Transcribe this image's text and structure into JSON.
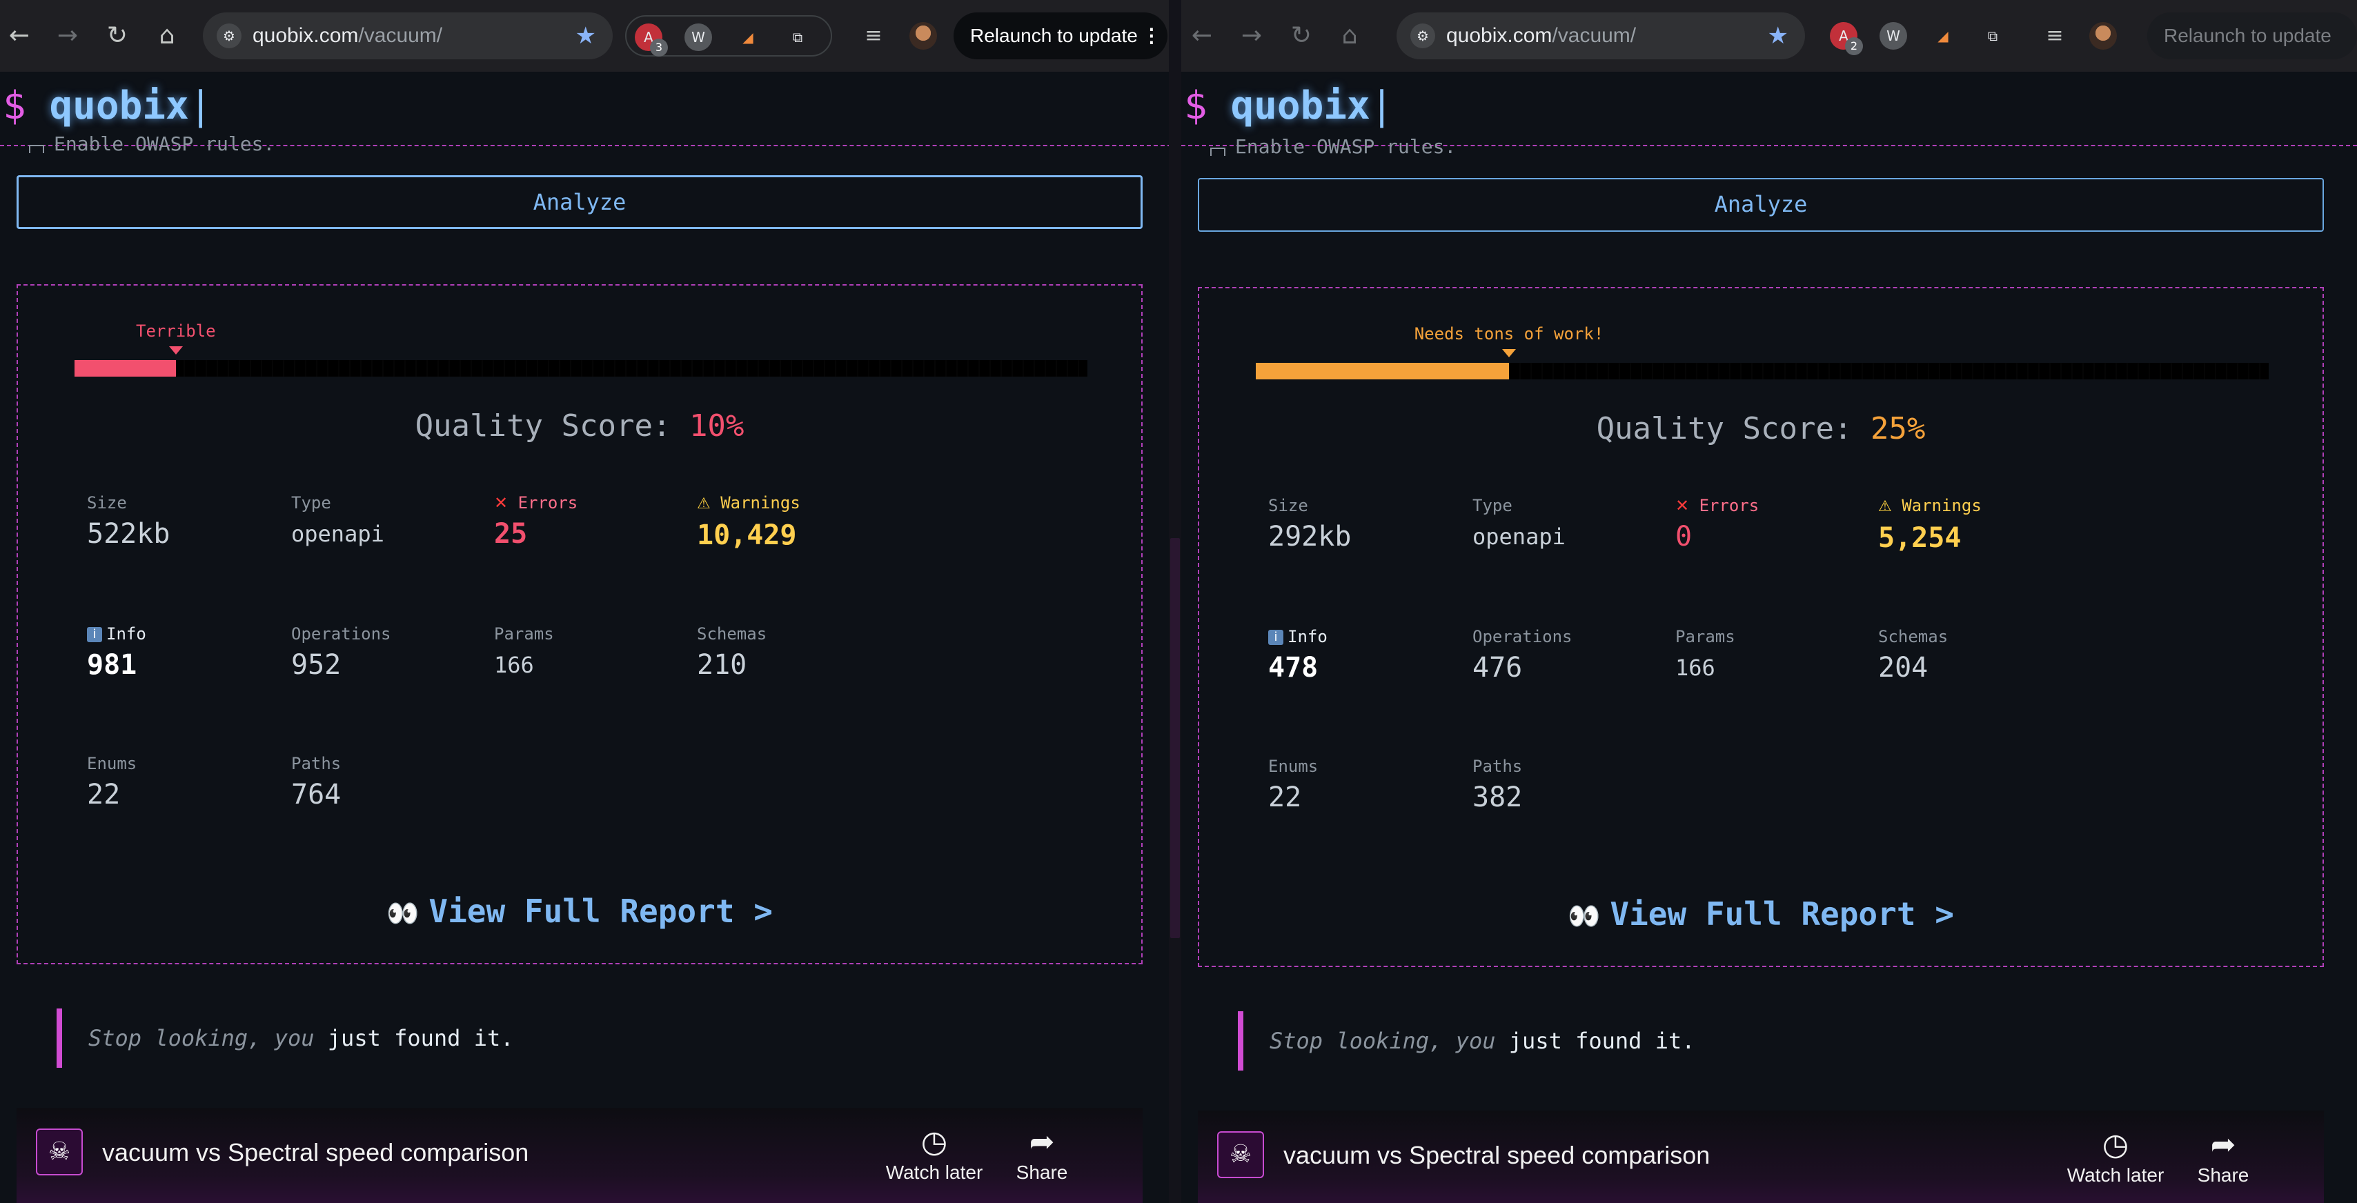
{
  "browser": {
    "url_host": "quobix.com",
    "url_path": "/vacuum/",
    "relaunch_label": "Relaunch to update",
    "left_badge": "3",
    "right_badge": "2"
  },
  "app": {
    "prompt_symbol": "$",
    "logo": "quobix",
    "cursor": "|",
    "cut_line": "Enable OWASP rules.",
    "analyze_label": "Analyze",
    "quality_label": "Quality Score:",
    "view_report_label": "View Full Report >",
    "quote_italic": "Stop looking, you",
    "quote_bold": "just found it."
  },
  "labels": {
    "size": "Size",
    "type": "Type",
    "errors": "Errors",
    "warnings": "Warnings",
    "info": "Info",
    "operations": "Operations",
    "params": "Params",
    "schemas": "Schemas",
    "enums": "Enums",
    "paths": "Paths"
  },
  "video": {
    "title": "vacuum vs Spectral speed comparison",
    "watch_later": "Watch later",
    "share": "Share"
  },
  "left": {
    "rating": "Terrible",
    "rating_color": "#f2506e",
    "score_fraction": 0.1,
    "score": "10%",
    "size": "522kb",
    "type": "openapi",
    "errors": "25",
    "warnings": "10,429",
    "info": "981",
    "operations": "952",
    "params": "166",
    "schemas": "210",
    "enums": "22",
    "paths": "764"
  },
  "right": {
    "rating": "Needs tons of work!",
    "rating_color": "#f5a23a",
    "score_fraction": 0.25,
    "score": "25%",
    "size": "292kb",
    "type": "openapi",
    "errors": "0",
    "warnings": "5,254",
    "info": "478",
    "operations": "476",
    "params": "166",
    "schemas": "204",
    "enums": "22",
    "paths": "382"
  },
  "colors": {
    "accent_blue": "#7fb8f2",
    "magenta": "#b03fb8",
    "error": "#f2506e",
    "warning": "#ffcf4f"
  }
}
